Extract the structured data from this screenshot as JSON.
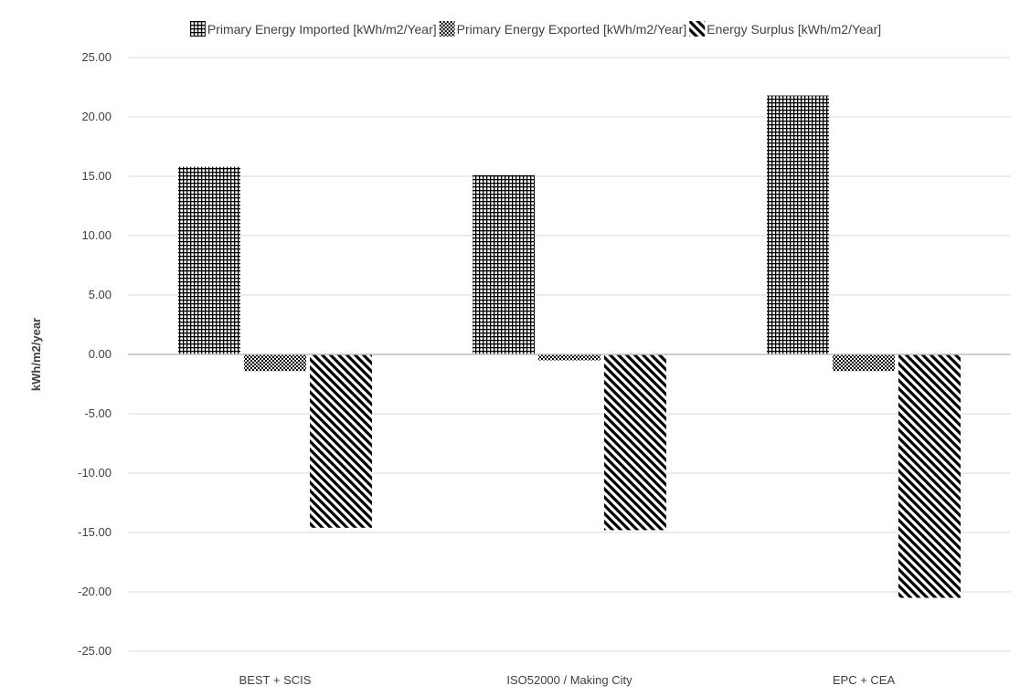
{
  "chart_data": {
    "type": "bar",
    "title": "",
    "xlabel": "",
    "ylabel": "kWh/m2/year",
    "ylim": [
      -25,
      25
    ],
    "yticks": [
      25,
      20,
      15,
      10,
      5,
      0,
      -5,
      -10,
      -15,
      -20,
      -25
    ],
    "ytick_labels": [
      "25.00",
      "20.00",
      "15.00",
      "10.00",
      "5.00",
      "0.00",
      "-5.00",
      "-10.00",
      "-15.00",
      "-20.00",
      "-25.00"
    ],
    "grid": true,
    "legend_position": "top",
    "categories": [
      "BEST + SCIS",
      "ISO52000 / Making City",
      "EPC + CEA"
    ],
    "series": [
      {
        "name": "Primary Energy Imported [kWh/m2/Year]",
        "pattern": "grid",
        "values": [
          15.8,
          15.1,
          21.8
        ]
      },
      {
        "name": "Primary Energy Exported [kWh/m2/Year]",
        "pattern": "checker",
        "values": [
          -1.4,
          -0.5,
          -1.4
        ]
      },
      {
        "name": "Energy Surplus [kWh/m2/Year]",
        "pattern": "diagonal",
        "values": [
          -14.6,
          -14.8,
          -20.5
        ]
      }
    ],
    "colors": {
      "ink": "#000000",
      "gridline": "#d9d9d9",
      "axis": "#bfbfbf",
      "text": "#404040"
    }
  }
}
